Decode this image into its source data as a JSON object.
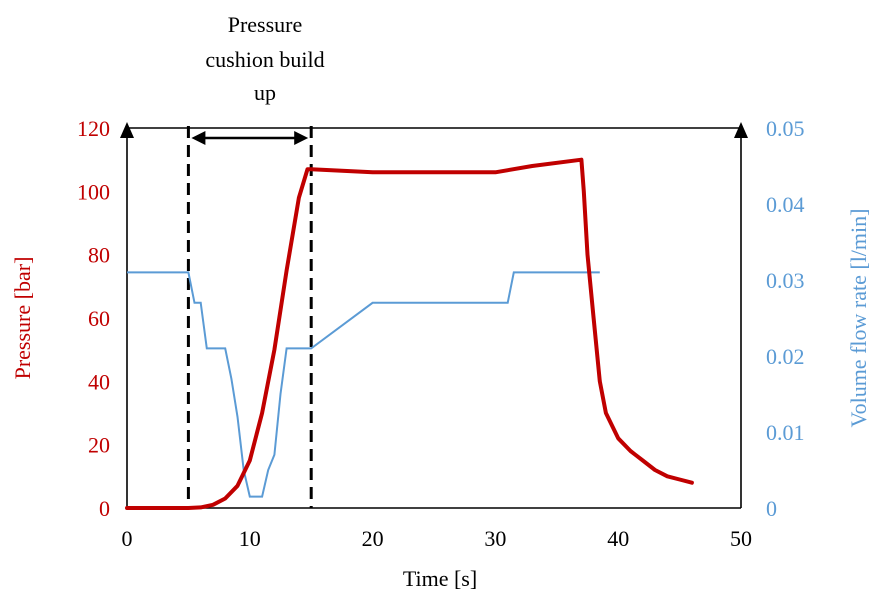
{
  "chart_data": {
    "type": "line",
    "annotation": [
      "Pressure",
      "cushion build",
      "up"
    ],
    "xlabel": "Time [s]",
    "ylabel_left": "Pressure [bar]",
    "ylabel_right": "Volume flow rate [l/min]",
    "xlim": [
      0,
      50
    ],
    "ylim_left": [
      0,
      120
    ],
    "ylim_right": [
      0,
      0.05
    ],
    "xticks": [
      "0",
      "10",
      "20",
      "30",
      "40",
      "50"
    ],
    "yticks_left": [
      "0",
      "20",
      "40",
      "60",
      "80",
      "100",
      "120"
    ],
    "yticks_right": [
      "0",
      "0.01",
      "0.02",
      "0.03",
      "0.04",
      "0.05"
    ],
    "markers_x": [
      5,
      15
    ],
    "colors": {
      "pressure": "#c00000",
      "flow": "#5b9bd5",
      "axis": "#000000"
    },
    "series": [
      {
        "axis": "left",
        "points": [
          [
            0,
            0
          ],
          [
            5,
            0
          ],
          [
            6,
            0.2
          ],
          [
            7,
            1
          ],
          [
            8,
            3
          ],
          [
            9,
            7
          ],
          [
            10,
            15
          ],
          [
            11,
            30
          ],
          [
            12,
            50
          ],
          [
            13,
            75
          ],
          [
            14,
            98
          ],
          [
            14.7,
            107
          ],
          [
            15,
            107
          ],
          [
            20,
            106
          ],
          [
            25,
            106
          ],
          [
            30,
            106
          ],
          [
            33,
            108
          ],
          [
            37,
            110
          ],
          [
            37.2,
            100
          ],
          [
            37.5,
            80
          ],
          [
            38,
            60
          ],
          [
            38.5,
            40
          ],
          [
            39,
            30
          ],
          [
            40,
            22
          ],
          [
            41,
            18
          ],
          [
            42,
            15
          ],
          [
            43,
            12
          ],
          [
            44,
            10
          ],
          [
            45,
            9
          ],
          [
            46,
            8
          ]
        ]
      },
      {
        "axis": "right",
        "points": [
          [
            0,
            0.031
          ],
          [
            1,
            0.031
          ],
          [
            2,
            0.031
          ],
          [
            3,
            0.031
          ],
          [
            4,
            0.031
          ],
          [
            5,
            0.031
          ],
          [
            5.5,
            0.027
          ],
          [
            6,
            0.027
          ],
          [
            6.5,
            0.021
          ],
          [
            8,
            0.021
          ],
          [
            8.5,
            0.017
          ],
          [
            9,
            0.012
          ],
          [
            9.5,
            0.005
          ],
          [
            10,
            0.0015
          ],
          [
            11,
            0.0015
          ],
          [
            11.5,
            0.005
          ],
          [
            12,
            0.007
          ],
          [
            12.5,
            0.015
          ],
          [
            13,
            0.021
          ],
          [
            14,
            0.021
          ],
          [
            15,
            0.021
          ],
          [
            20,
            0.027
          ],
          [
            25,
            0.027
          ],
          [
            30,
            0.027
          ],
          [
            31,
            0.027
          ],
          [
            31.5,
            0.031
          ],
          [
            35,
            0.031
          ],
          [
            38.5,
            0.031
          ]
        ]
      }
    ]
  }
}
